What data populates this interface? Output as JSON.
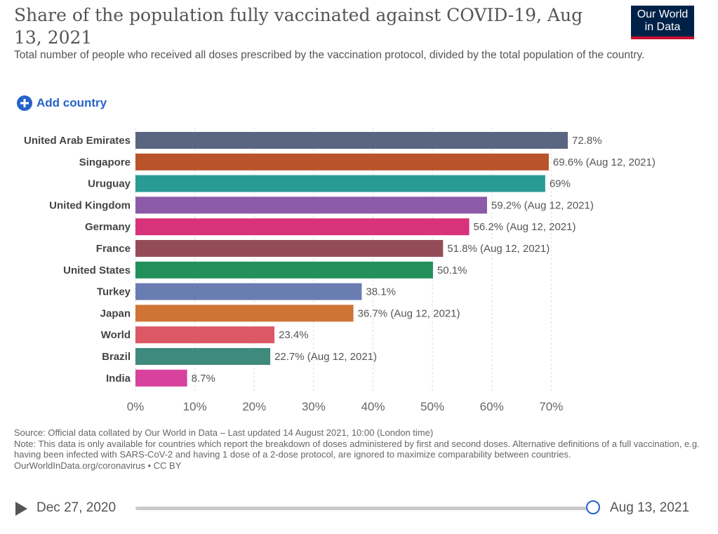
{
  "header": {
    "title": "Share of the population fully vaccinated against COVID-19, Aug 13, 2021",
    "subtitle": "Total number of people who received all doses prescribed by the vaccination protocol, divided by the total population of the country.",
    "logo_line1": "Our World",
    "logo_line2": "in Data"
  },
  "controls": {
    "add_country_label": "Add country"
  },
  "chart_data": {
    "type": "bar",
    "orientation": "horizontal",
    "categories": [
      "United Arab Emirates",
      "Singapore",
      "Uruguay",
      "United Kingdom",
      "Germany",
      "France",
      "United States",
      "Turkey",
      "Japan",
      "World",
      "Brazil",
      "India"
    ],
    "values": [
      72.8,
      69.6,
      69,
      59.2,
      56.2,
      51.8,
      50.1,
      38.1,
      36.7,
      23.4,
      22.7,
      8.7
    ],
    "value_labels": [
      "72.8%",
      "69.6% (Aug 12, 2021)",
      "69%",
      "59.2% (Aug 12, 2021)",
      "56.2% (Aug 12, 2021)",
      "51.8% (Aug 12, 2021)",
      "50.1%",
      "38.1%",
      "36.7% (Aug 12, 2021)",
      "23.4%",
      "22.7% (Aug 12, 2021)",
      "8.7%"
    ],
    "colors": [
      "#5a6680",
      "#b9532a",
      "#2a9a94",
      "#8b5aa8",
      "#d8327a",
      "#944d58",
      "#22905a",
      "#6a7db2",
      "#cf7435",
      "#dc5866",
      "#3e8a7d",
      "#d8429e"
    ],
    "xlim": [
      0,
      72.8
    ],
    "xticks": [
      0,
      10,
      20,
      30,
      40,
      50,
      60,
      70
    ],
    "xtick_labels": [
      "0%",
      "10%",
      "20%",
      "30%",
      "40%",
      "50%",
      "60%",
      "70%"
    ],
    "grid": true,
    "title": "Share of the population fully vaccinated against COVID-19, Aug 13, 2021"
  },
  "footer": {
    "source": "Source: Official data collated by Our World in Data – Last updated 14 August 2021, 10:00 (London time)",
    "note": "Note: This data is only available for countries which report the breakdown of doses administered by first and second doses. Alternative definitions of a full vaccination, e.g. having been infected with SARS-CoV-2 and having 1 dose of a 2-dose protocol, are ignored to maximize comparability between countries.",
    "link": "OurWorldInData.org/coronavirus • CC BY"
  },
  "timeline": {
    "start_date": "Dec 27, 2020",
    "end_date": "Aug 13, 2021"
  }
}
